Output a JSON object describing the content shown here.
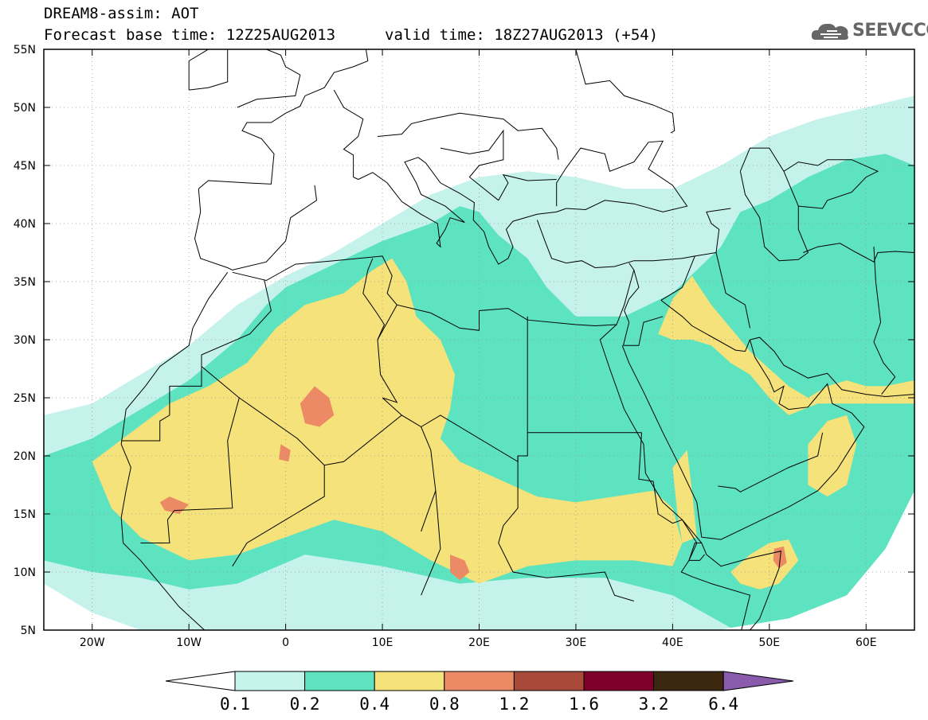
{
  "title": {
    "line1": "DREAM8-assim: AOT",
    "line2_left": "Forecast base time: 12Z25AUG2013",
    "line2_right": "valid time: 18Z27AUG2013 (+54)"
  },
  "logo": {
    "text": "SEEVCCC",
    "icon": "cloud-logo-icon",
    "color": "#666666"
  },
  "map": {
    "lon_range": [
      -25,
      65
    ],
    "lat_range": [
      5,
      55
    ],
    "x_ticks": [
      {
        "lon": -20,
        "label": "20W"
      },
      {
        "lon": -10,
        "label": "10W"
      },
      {
        "lon": 0,
        "label": "0"
      },
      {
        "lon": 10,
        "label": "10E"
      },
      {
        "lon": 20,
        "label": "20E"
      },
      {
        "lon": 30,
        "label": "30E"
      },
      {
        "lon": 40,
        "label": "40E"
      },
      {
        "lon": 50,
        "label": "50E"
      },
      {
        "lon": 60,
        "label": "60E"
      }
    ],
    "y_ticks": [
      {
        "lat": 55,
        "label": "55N"
      },
      {
        "lat": 50,
        "label": "50N"
      },
      {
        "lat": 45,
        "label": "45N"
      },
      {
        "lat": 40,
        "label": "40N"
      },
      {
        "lat": 35,
        "label": "35N"
      },
      {
        "lat": 30,
        "label": "30N"
      },
      {
        "lat": 25,
        "label": "25N"
      },
      {
        "lat": 20,
        "label": "20N"
      },
      {
        "lat": 15,
        "label": "15N"
      },
      {
        "lat": 10,
        "label": "10N"
      },
      {
        "lat": 5,
        "label": "5N"
      }
    ],
    "grid": true,
    "contour_fills": [
      {
        "level": "0.1-0.2",
        "color": "#c5f3ec",
        "polygons": [
          [
            [
              -25,
              23.5
            ],
            [
              -20,
              24.5
            ],
            [
              -15,
              27
            ],
            [
              -10,
              29.5
            ],
            [
              -5,
              33
            ],
            [
              0,
              35.5
            ],
            [
              5,
              37.5
            ],
            [
              10,
              40
            ],
            [
              15,
              42.5
            ],
            [
              20,
              44
            ],
            [
              25,
              44.5
            ],
            [
              30,
              44
            ],
            [
              35,
              43
            ],
            [
              40,
              43
            ],
            [
              45,
              45
            ],
            [
              50,
              47.5
            ],
            [
              55,
              49
            ],
            [
              60,
              50
            ],
            [
              65,
              51
            ],
            [
              65,
              24
            ],
            [
              63,
              20
            ],
            [
              61,
              14
            ],
            [
              57,
              10
            ],
            [
              52,
              6.5
            ],
            [
              45,
              5
            ],
            [
              -15,
              5
            ],
            [
              -20,
              6.5
            ],
            [
              -25,
              9
            ]
          ]
        ]
      },
      {
        "level": "0.2-0.4",
        "color": "#5ee3c0",
        "polygons": [
          [
            [
              -25,
              20
            ],
            [
              -20,
              21.5
            ],
            [
              -15,
              24
            ],
            [
              -10,
              26.5
            ],
            [
              -5,
              30
            ],
            [
              -2,
              33
            ],
            [
              0,
              34.5
            ],
            [
              5,
              36.5
            ],
            [
              10,
              38.5
            ],
            [
              15,
              40
            ],
            [
              18,
              41.5
            ],
            [
              20,
              41
            ],
            [
              22,
              39
            ],
            [
              25,
              37
            ],
            [
              27,
              34.5
            ],
            [
              30,
              32
            ],
            [
              35,
              32
            ],
            [
              40,
              34
            ],
            [
              45,
              38
            ],
            [
              47,
              41
            ],
            [
              50,
              42
            ],
            [
              54,
              44
            ],
            [
              58,
              45.5
            ],
            [
              62,
              46
            ],
            [
              65,
              45
            ],
            [
              65,
              17
            ],
            [
              62,
              12
            ],
            [
              58,
              8
            ],
            [
              52,
              6
            ],
            [
              46,
              5.2
            ],
            [
              40,
              8
            ],
            [
              33,
              9.5
            ],
            [
              25,
              9.5
            ],
            [
              18,
              9
            ],
            [
              10,
              10.5
            ],
            [
              2,
              11.5
            ],
            [
              -5,
              9
            ],
            [
              -10,
              8.5
            ],
            [
              -15,
              9.5
            ],
            [
              -20,
              10
            ],
            [
              -25,
              11
            ]
          ]
        ]
      },
      {
        "level": "0.4-0.8",
        "color": "#f5e27a",
        "polygons": [
          [
            [
              -20,
              19.5
            ],
            [
              -16,
              22
            ],
            [
              -12,
              24.5
            ],
            [
              -8,
              26
            ],
            [
              -4,
              28
            ],
            [
              -1,
              31
            ],
            [
              2,
              33
            ],
            [
              6,
              34
            ],
            [
              9,
              36
            ],
            [
              11,
              37
            ],
            [
              12.5,
              35
            ],
            [
              13.5,
              32
            ],
            [
              16,
              30
            ],
            [
              17.5,
              27
            ],
            [
              17,
              24
            ],
            [
              16,
              21.5
            ],
            [
              18,
              19.5
            ],
            [
              22,
              18
            ],
            [
              26,
              16.5
            ],
            [
              30,
              16
            ],
            [
              34,
              16.5
            ],
            [
              38,
              17
            ],
            [
              40,
              15.5
            ],
            [
              41,
              12.5
            ],
            [
              40,
              10.5
            ],
            [
              36,
              11
            ],
            [
              30,
              11
            ],
            [
              25,
              10.5
            ],
            [
              20,
              9
            ],
            [
              15,
              11
            ],
            [
              10,
              13.5
            ],
            [
              5,
              14.5
            ],
            [
              0,
              13
            ],
            [
              -5,
              11.5
            ],
            [
              -10,
              11
            ],
            [
              -15,
              13
            ],
            [
              -18,
              15.5
            ]
          ],
          [
            [
              38.5,
              30.5
            ],
            [
              40,
              33.5
            ],
            [
              42,
              35.5
            ],
            [
              44,
              33
            ],
            [
              46,
              31
            ],
            [
              48,
              29
            ],
            [
              50,
              27.5
            ],
            [
              52,
              26
            ],
            [
              54,
              25
            ],
            [
              56,
              26
            ],
            [
              58,
              26.5
            ],
            [
              60,
              26
            ],
            [
              62,
              26
            ],
            [
              65,
              26.5
            ],
            [
              65,
              24.5
            ],
            [
              62,
              24.5
            ],
            [
              58,
              24.5
            ],
            [
              55,
              24.5
            ],
            [
              52,
              23.5
            ],
            [
              50,
              25
            ],
            [
              48,
              27
            ],
            [
              46,
              28
            ],
            [
              44,
              29.5
            ],
            [
              42,
              30
            ],
            [
              40,
              30
            ]
          ],
          [
            [
              54,
              21
            ],
            [
              56,
              23
            ],
            [
              58,
              23.5
            ],
            [
              59,
              21
            ],
            [
              58,
              17.5
            ],
            [
              56,
              16.5
            ],
            [
              54,
              17.5
            ]
          ],
          [
            [
              46,
              10
            ],
            [
              48,
              11.5
            ],
            [
              50,
              12.5
            ],
            [
              52,
              12.8
            ],
            [
              53,
              11
            ],
            [
              51,
              9
            ],
            [
              49,
              8.5
            ],
            [
              47,
              9
            ]
          ],
          [
            [
              40,
              19
            ],
            [
              41.5,
              20.5
            ],
            [
              42,
              17
            ],
            [
              42.5,
              13
            ],
            [
              41,
              12.5
            ],
            [
              40.5,
              15
            ]
          ]
        ]
      },
      {
        "level": "0.8-1.2",
        "color": "#ec8a66",
        "polygons": [
          [
            [
              3,
              26
            ],
            [
              4.5,
              25
            ],
            [
              5,
              23.5
            ],
            [
              3.5,
              22.5
            ],
            [
              2,
              22.8
            ],
            [
              1.5,
              24.5
            ]
          ],
          [
            [
              -12,
              16.5
            ],
            [
              -10,
              15.8
            ],
            [
              -11,
              15
            ],
            [
              -12.5,
              15.3
            ],
            [
              -13,
              16
            ]
          ],
          [
            [
              -0.5,
              21
            ],
            [
              0.5,
              20.5
            ],
            [
              0.3,
              19.5
            ],
            [
              -0.7,
              19.7
            ]
          ],
          [
            [
              17,
              11.5
            ],
            [
              18.5,
              11
            ],
            [
              19,
              10
            ],
            [
              18,
              9.3
            ],
            [
              17,
              10
            ]
          ],
          [
            [
              50.5,
              12
            ],
            [
              51.5,
              12.2
            ],
            [
              51.8,
              10.8
            ],
            [
              51,
              10.3
            ],
            [
              50.4,
              11
            ]
          ]
        ]
      }
    ],
    "coastline_color": "#000000"
  },
  "legend": {
    "colors": [
      "#ffffff",
      "#c5f3ec",
      "#5ee3c0",
      "#f5e27a",
      "#ec8a66",
      "#a84a3a",
      "#80002c",
      "#3c2710",
      "#8a5aac"
    ],
    "labels": [
      "0.1",
      "0.2",
      "0.4",
      "0.8",
      "1.2",
      "1.6",
      "3.2",
      "6.4"
    ]
  }
}
